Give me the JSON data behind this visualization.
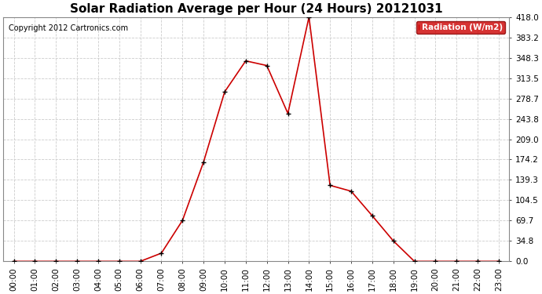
{
  "title": "Solar Radiation Average per Hour (24 Hours) 20121031",
  "copyright": "Copyright 2012 Cartronics.com",
  "legend_label": "Radiation (W/m2)",
  "hours": [
    0,
    1,
    2,
    3,
    4,
    5,
    6,
    7,
    8,
    9,
    10,
    11,
    12,
    13,
    14,
    15,
    16,
    17,
    18,
    19,
    20,
    21,
    22,
    23
  ],
  "values": [
    0.0,
    0.0,
    0.0,
    0.0,
    0.0,
    0.0,
    0.0,
    14.0,
    70.0,
    170.0,
    290.0,
    343.0,
    335.0,
    253.0,
    418.0,
    130.0,
    120.0,
    78.0,
    35.0,
    0.0,
    0.0,
    0.0,
    0.0,
    0.0
  ],
  "yticks": [
    0.0,
    34.8,
    69.7,
    104.5,
    139.3,
    174.2,
    209.0,
    243.8,
    278.7,
    313.5,
    348.3,
    383.2,
    418.0
  ],
  "ylim": [
    0.0,
    418.0
  ],
  "line_color": "#cc0000",
  "marker_color": "#000000",
  "legend_bg": "#cc0000",
  "legend_text_color": "#ffffff",
  "bg_color": "#ffffff",
  "grid_color": "#cccccc",
  "title_fontsize": 11,
  "axis_fontsize": 7.5,
  "copyright_fontsize": 7
}
